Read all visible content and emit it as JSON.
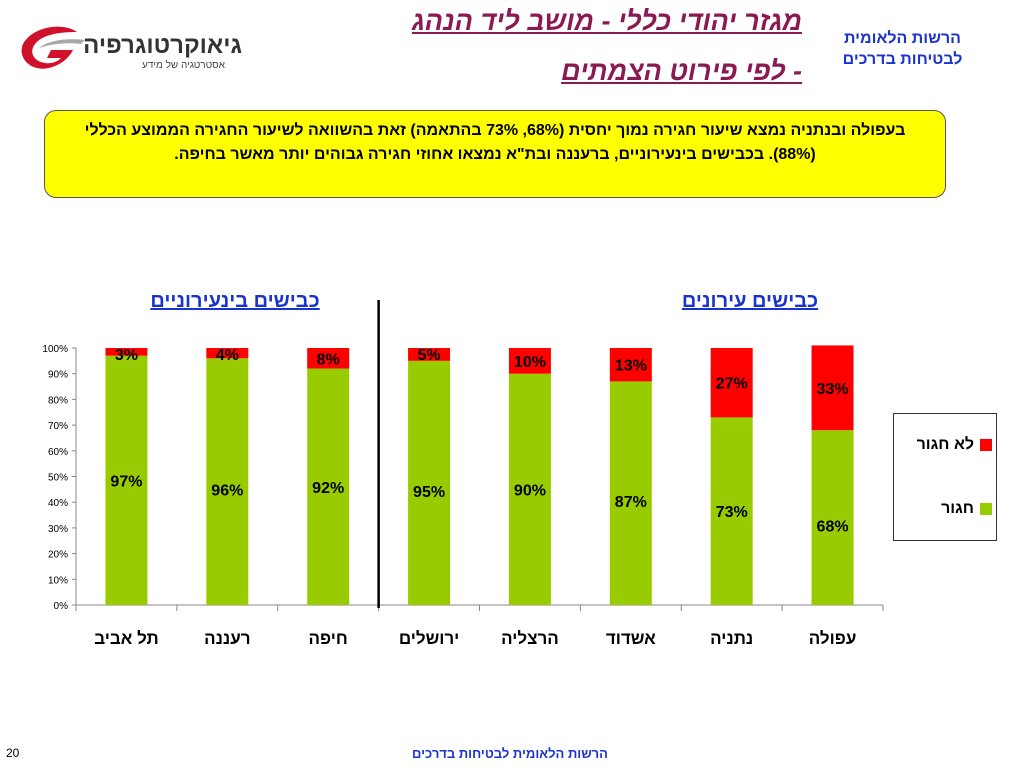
{
  "header": {
    "title_line1": "מגזר יהודי כללי - מושב ליד הנהג",
    "title_line2": "- לפי פירוט הצמתים",
    "org_line1": "הרשות הלאומית",
    "org_line2": "לבטיחות בדרכים",
    "brand_name": "גיאוקרטוגרפיה",
    "brand_tagline": "אסטרטגיה של מידע"
  },
  "summary": {
    "text": "בעפולה ובנתניה נמצא שיעור חגירה נמוך יחסית (68%, 73% בהתאמה) זאת בהשוואה לשיעור החגירה הממוצע הכללי (88%). בכבישים בינעירוניים, ברעננה ובת\"א נמצאו אחוזי חגירה גבוהים יותר מאשר בחיפה."
  },
  "groups": {
    "urban_label": "כבישים עירונים",
    "interurban_label": "כבישים בינעירוניים"
  },
  "chart_data": {
    "type": "bar",
    "stacked": true,
    "categories": [
      "תל אביב",
      "רעננה",
      "חיפה",
      "ירושלים",
      "הרצליה",
      "אשדוד",
      "נתניה",
      "עפולה"
    ],
    "series": [
      {
        "name": "חגור",
        "values": [
          97,
          96,
          92,
          95,
          90,
          87,
          73,
          68
        ],
        "labels": [
          "97%",
          "96%",
          "92%",
          "95%",
          "90%",
          "87%",
          "73%",
          "68%"
        ],
        "color": "#99cc00"
      },
      {
        "name": "לא חגור",
        "values": [
          3,
          4,
          8,
          5,
          10,
          13,
          27,
          33
        ],
        "labels": [
          "3%",
          "4%",
          "8%",
          "5%",
          "10%",
          "13%",
          "27%",
          "33%"
        ],
        "color": "#ff0000"
      }
    ],
    "ylim": [
      0,
      100
    ],
    "yticks": [
      "0%",
      "10%",
      "20%",
      "30%",
      "40%",
      "50%",
      "60%",
      "70%",
      "80%",
      "90%",
      "100%"
    ],
    "grid": false,
    "legend": "right"
  },
  "footer": {
    "org": "הרשות הלאומית לבטיחות בדרכים",
    "page_number": "20"
  },
  "colors": {
    "title": "#8b1a52",
    "accent_blue": "#1a33cc",
    "summary_bg": "#ffff00",
    "logo_red": "#d0112b"
  }
}
